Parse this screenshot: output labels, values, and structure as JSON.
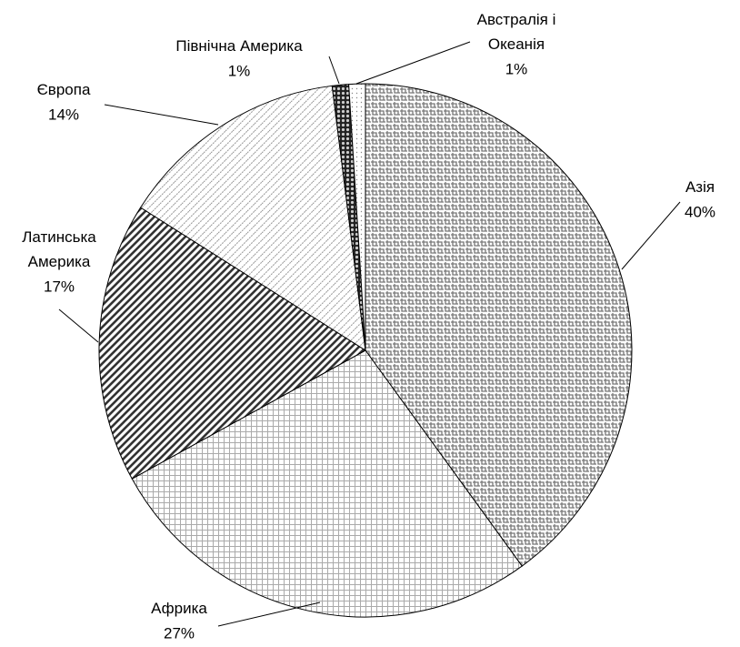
{
  "chart_data": {
    "type": "pie",
    "categories": [
      "Азія",
      "Африка",
      "Латинська Америка",
      "Європа",
      "Північна Америка",
      "Австралія і Океанія"
    ],
    "values": [
      40,
      27,
      17,
      14,
      1,
      1
    ],
    "value_labels": [
      "40%",
      "27%",
      "17%",
      "14%",
      "1%",
      "1%"
    ]
  }
}
